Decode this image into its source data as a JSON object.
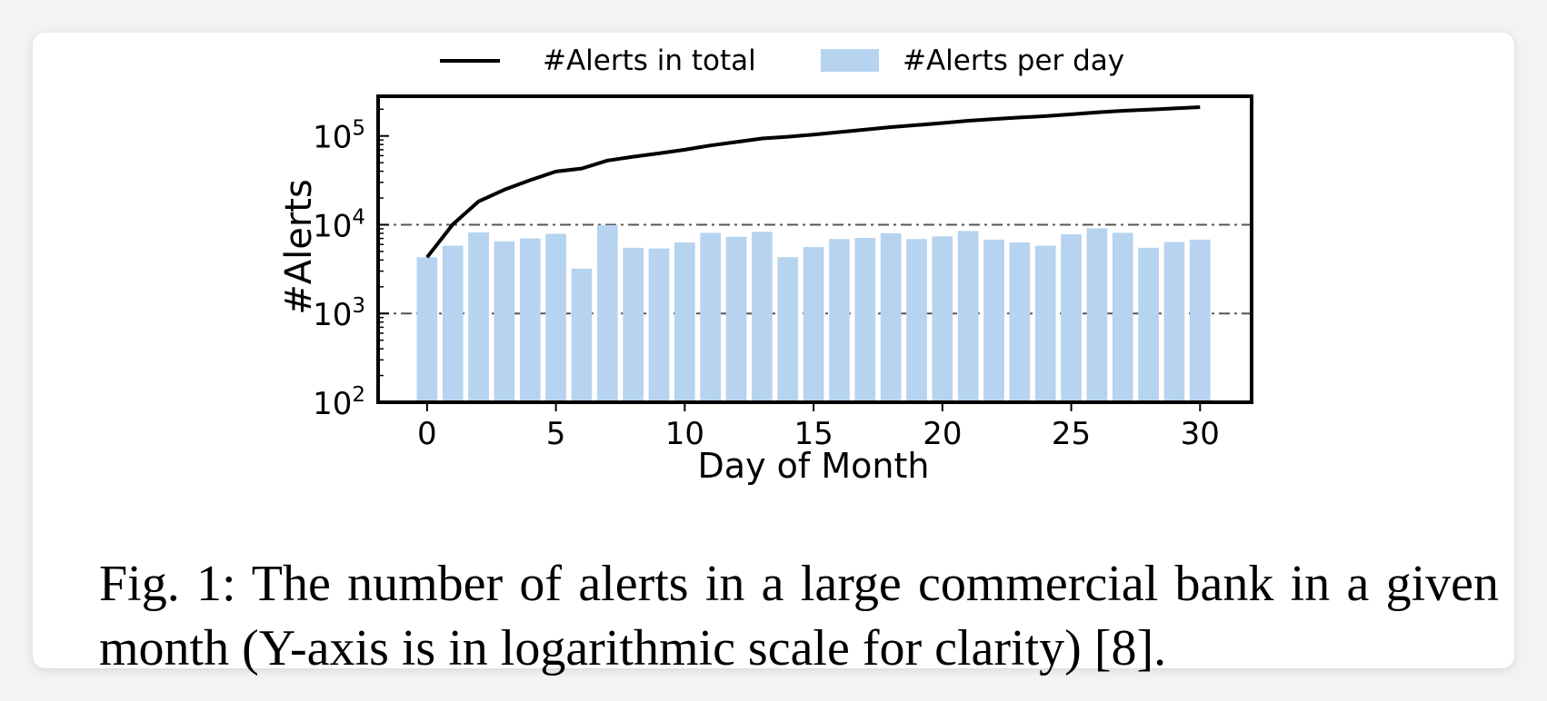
{
  "chart_data": {
    "type": "bar",
    "xlabel": "Day of Month",
    "ylabel": "#Alerts",
    "yscale": "log",
    "ylim": [
      100,
      280000
    ],
    "xlim": [
      -1.9,
      32
    ],
    "x_ticks": [
      0,
      5,
      10,
      15,
      20,
      25,
      30
    ],
    "y_ticks": [
      {
        "value": 100,
        "base": "10",
        "exp": "2"
      },
      {
        "value": 1000,
        "base": "10",
        "exp": "3"
      },
      {
        "value": 10000,
        "base": "10",
        "exp": "4"
      },
      {
        "value": 100000,
        "base": "10",
        "exp": "5"
      }
    ],
    "reference_lines": [
      1000,
      10000
    ],
    "legend": {
      "position": "top-center",
      "entries": [
        "#Alerts in total",
        "#Alerts per day"
      ]
    },
    "series": [
      {
        "name": "#Alerts per day",
        "type": "bar",
        "color": "#b6d3ef",
        "x": [
          0,
          1,
          2,
          3,
          4,
          5,
          6,
          7,
          8,
          9,
          10,
          11,
          12,
          13,
          14,
          15,
          16,
          17,
          18,
          19,
          20,
          21,
          22,
          23,
          24,
          25,
          26,
          27,
          28,
          29,
          30
        ],
        "values": [
          4300,
          5800,
          8200,
          6500,
          7000,
          7900,
          3200,
          9900,
          5500,
          5400,
          6300,
          8100,
          7300,
          8300,
          4300,
          5600,
          6900,
          7100,
          8000,
          6900,
          7400,
          8500,
          6800,
          6300,
          5800,
          7800,
          9100,
          8100,
          5500,
          6400,
          6800
        ]
      },
      {
        "name": "#Alerts in total",
        "type": "line",
        "color": "#000000",
        "x": [
          0,
          1,
          2,
          3,
          4,
          5,
          6,
          7,
          8,
          9,
          10,
          11,
          12,
          13,
          14,
          15,
          16,
          17,
          18,
          19,
          20,
          21,
          22,
          23,
          24,
          25,
          26,
          27,
          28,
          29,
          30
        ],
        "values": [
          4300,
          10100,
          18300,
          24800,
          31800,
          39700,
          42900,
          52800,
          58300,
          63700,
          70000,
          78100,
          85400,
          93700,
          98000,
          103600,
          110500,
          117600,
          125600,
          132500,
          139900,
          148400,
          155200,
          161500,
          167300,
          175100,
          184200,
          192300,
          197800,
          204200,
          211000
        ]
      }
    ]
  },
  "caption": "Fig. 1: The number of alerts in a large commercial bank in a given month (Y-axis is in logarithmic scale for clarity) [8]."
}
